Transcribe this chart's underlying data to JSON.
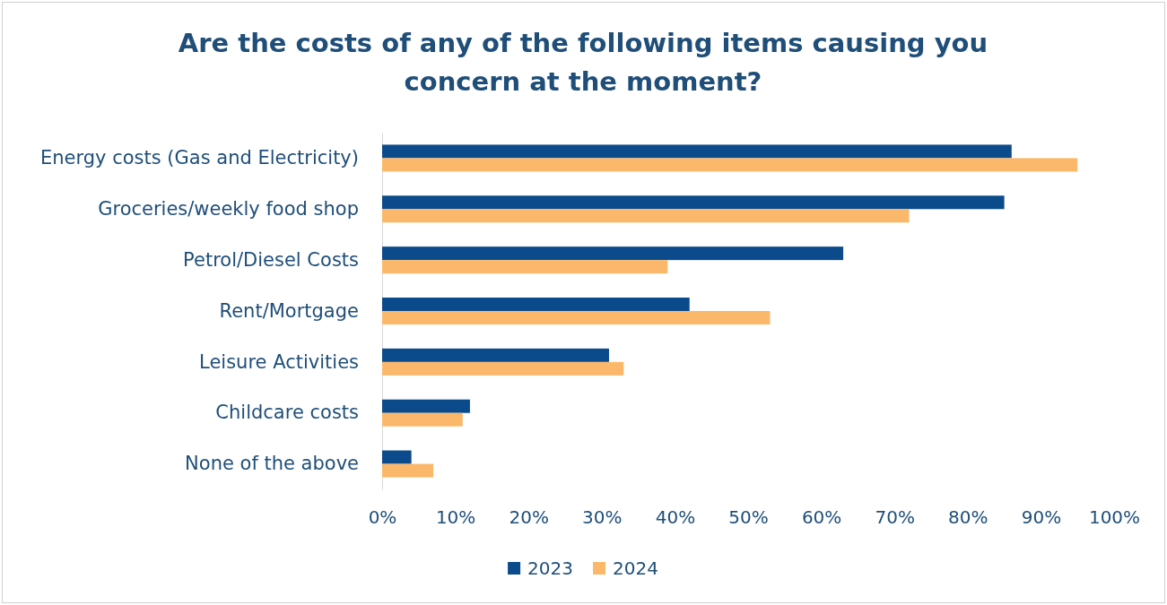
{
  "chart_data": {
    "type": "bar",
    "orientation": "horizontal",
    "title": "Are the costs of any of the following items causing you concern at the moment?",
    "categories": [
      "Energy costs (Gas and Electricity)",
      "Groceries/weekly food shop",
      "Petrol/Diesel Costs",
      "Rent/Mortgage",
      "Leisure Activities",
      "Childcare costs",
      "None of the above"
    ],
    "series": [
      {
        "name": "2023",
        "color": "#0b4a8b",
        "values": [
          86,
          85,
          63,
          42,
          31,
          12,
          4
        ]
      },
      {
        "name": "2024",
        "color": "#fbb86a",
        "values": [
          95,
          72,
          39,
          53,
          33,
          11,
          7
        ]
      }
    ],
    "xlim": [
      0,
      100
    ],
    "xticks": [
      {
        "value": 0,
        "label": "0%"
      },
      {
        "value": 10,
        "label": "10%"
      },
      {
        "value": 20,
        "label": "20%"
      },
      {
        "value": 30,
        "label": "30%"
      },
      {
        "value": 40,
        "label": "40%"
      },
      {
        "value": 50,
        "label": "50%"
      },
      {
        "value": 60,
        "label": "60%"
      },
      {
        "value": 70,
        "label": "70%"
      },
      {
        "value": 80,
        "label": "80%"
      },
      {
        "value": 90,
        "label": "90%"
      },
      {
        "value": 100,
        "label": "100%"
      }
    ],
    "grid": false,
    "legend": "bottom"
  }
}
